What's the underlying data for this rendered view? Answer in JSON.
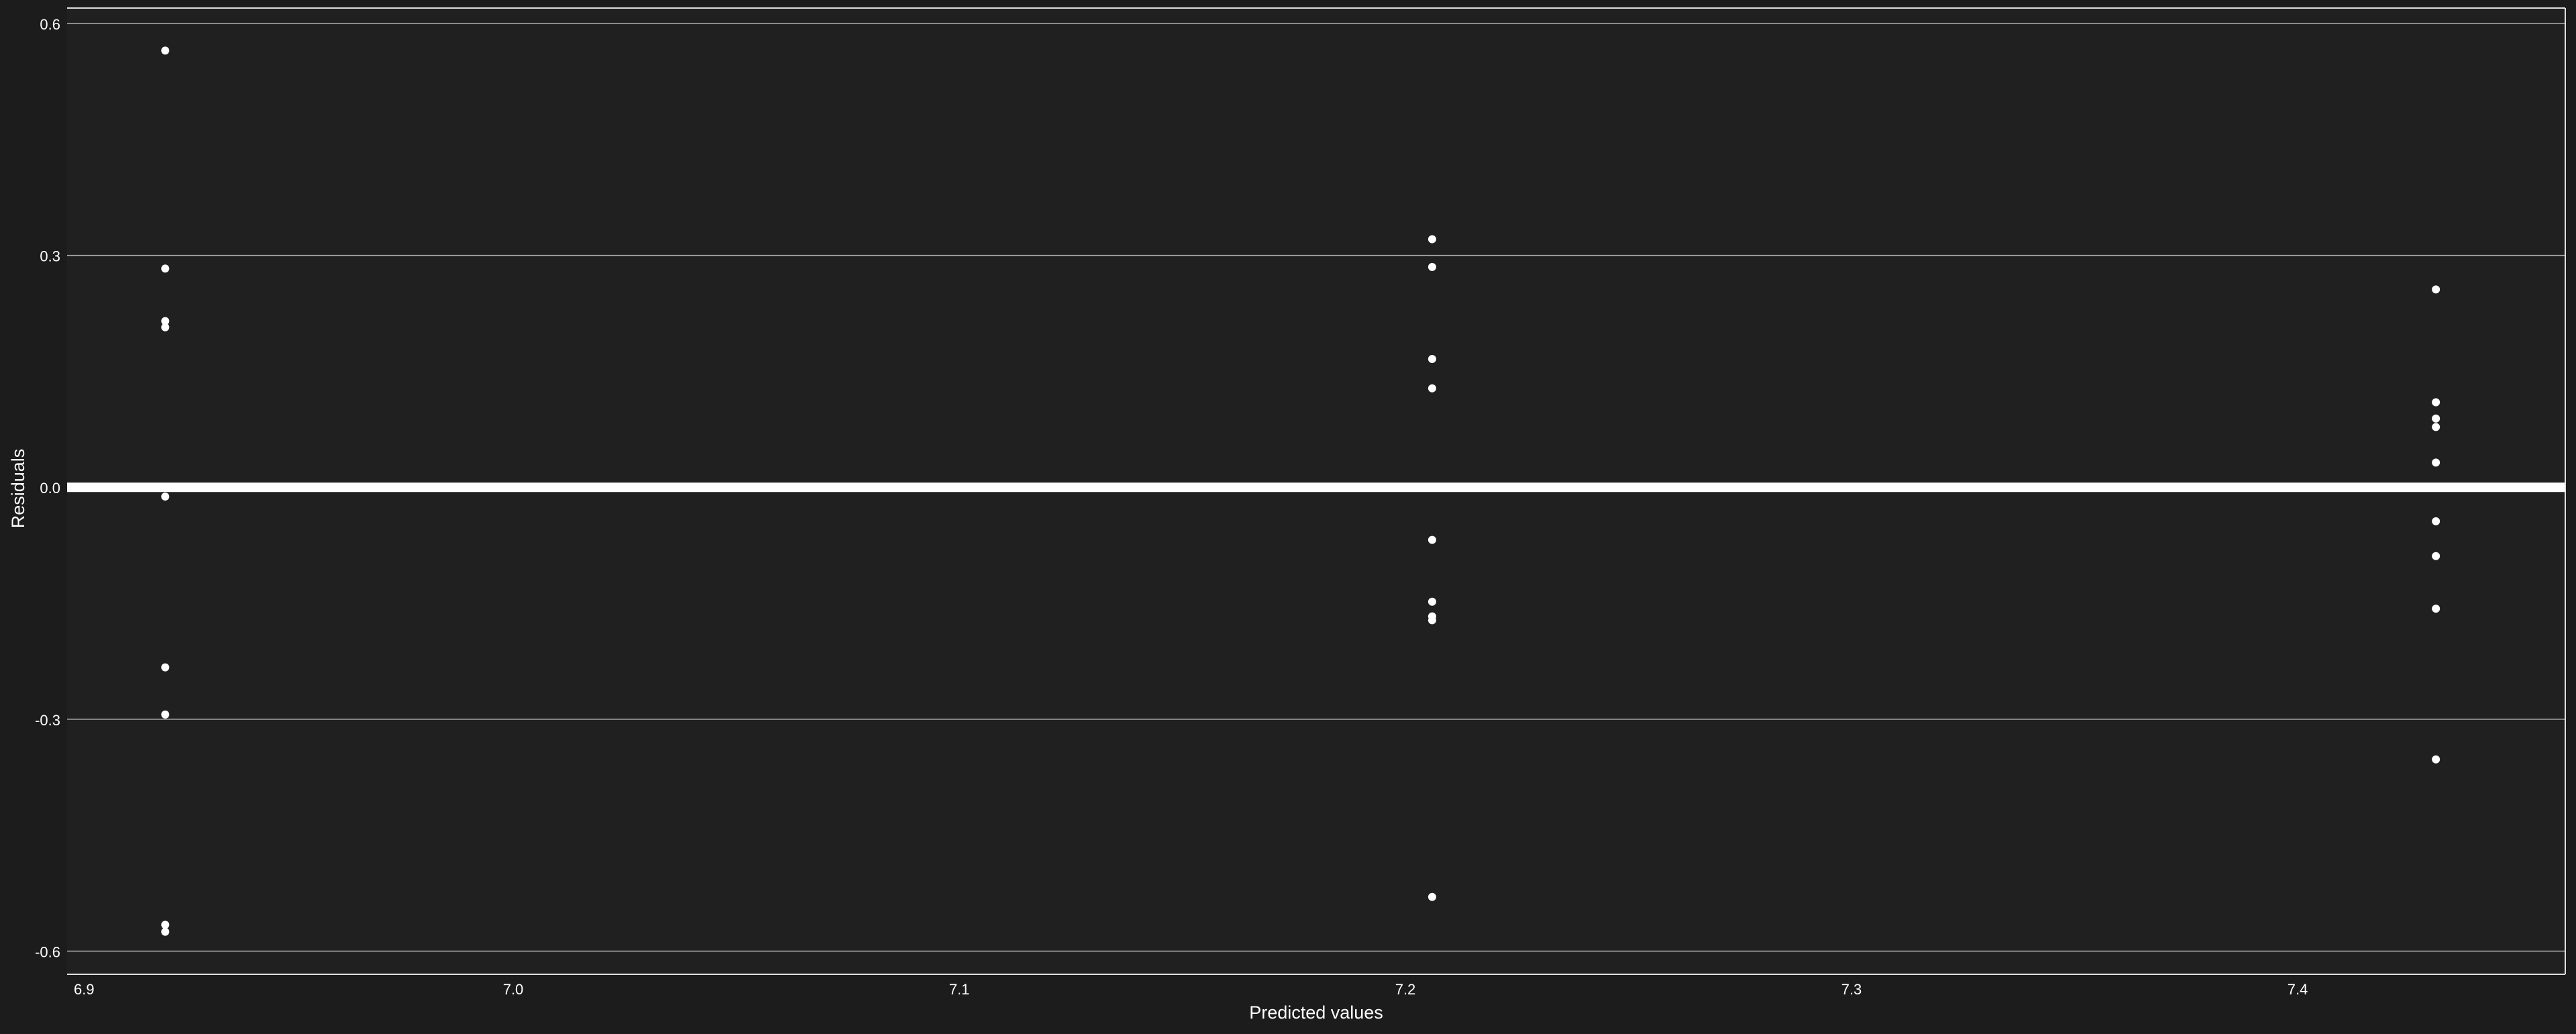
{
  "chart_data": {
    "type": "scatter",
    "title": "",
    "xlabel": "Predicted values",
    "ylabel": "Residuals",
    "xlim": [
      6.9,
      7.46
    ],
    "ylim": [
      -0.63,
      0.62
    ],
    "xticks": [
      {
        "value": 6.9,
        "label": "6.9"
      },
      {
        "value": 7.0,
        "label": "7.0"
      },
      {
        "value": 7.1,
        "label": "7.1"
      },
      {
        "value": 7.2,
        "label": "7.2"
      },
      {
        "value": 7.3,
        "label": "7.3"
      },
      {
        "value": 7.4,
        "label": "7.4"
      }
    ],
    "yticks": [
      {
        "value": -0.6,
        "label": "-0.6"
      },
      {
        "value": -0.3,
        "label": "-0.3"
      },
      {
        "value": 0.0,
        "label": "0.0"
      },
      {
        "value": 0.3,
        "label": "0.3"
      },
      {
        "value": 0.6,
        "label": "0.6"
      }
    ],
    "grid": "horizontal",
    "reference_line": 0.0,
    "colors": {
      "background": "#1c1c1c",
      "panel": "#202020",
      "grid": "#b0b0b0",
      "points": "#ffffff",
      "reference_line": "#ffffff"
    },
    "points": [
      {
        "x": 6.922,
        "y": 0.565
      },
      {
        "x": 6.922,
        "y": 0.283
      },
      {
        "x": 6.922,
        "y": 0.215
      },
      {
        "x": 6.922,
        "y": 0.207
      },
      {
        "x": 6.922,
        "y": -0.012
      },
      {
        "x": 6.922,
        "y": -0.233
      },
      {
        "x": 6.922,
        "y": -0.294
      },
      {
        "x": 6.922,
        "y": -0.566
      },
      {
        "x": 6.922,
        "y": -0.575
      },
      {
        "x": 7.206,
        "y": 0.321
      },
      {
        "x": 7.206,
        "y": 0.285
      },
      {
        "x": 7.206,
        "y": 0.166
      },
      {
        "x": 7.206,
        "y": 0.128
      },
      {
        "x": 7.206,
        "y": -0.068
      },
      {
        "x": 7.206,
        "y": -0.148
      },
      {
        "x": 7.206,
        "y": -0.167
      },
      {
        "x": 7.206,
        "y": -0.172
      },
      {
        "x": 7.206,
        "y": -0.53
      },
      {
        "x": 7.431,
        "y": 0.256
      },
      {
        "x": 7.431,
        "y": 0.11
      },
      {
        "x": 7.431,
        "y": 0.089
      },
      {
        "x": 7.431,
        "y": 0.078
      },
      {
        "x": 7.431,
        "y": 0.032
      },
      {
        "x": 7.431,
        "y": -0.044
      },
      {
        "x": 7.431,
        "y": -0.089
      },
      {
        "x": 7.431,
        "y": -0.157
      },
      {
        "x": 7.431,
        "y": -0.352
      }
    ]
  }
}
